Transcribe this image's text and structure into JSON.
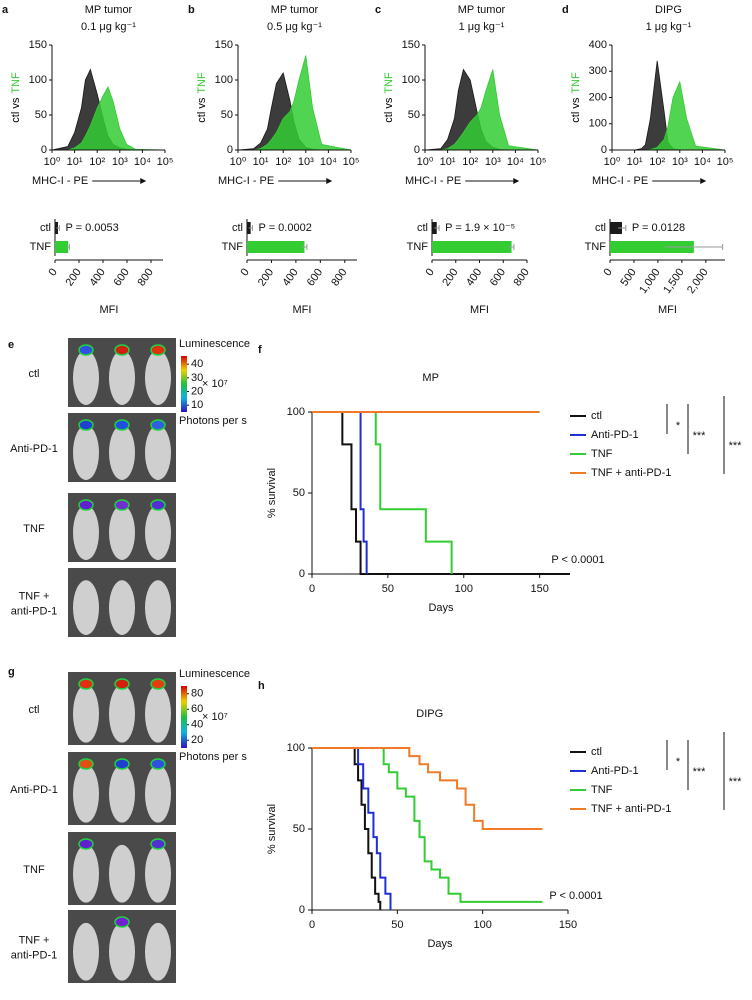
{
  "chart_data": [
    {
      "type": "area",
      "panel": "a",
      "title": "MP tumor",
      "subtitle": "0.1 μg kg⁻¹",
      "ylabel_parts": [
        {
          "text": "ctl vs",
          "color": "#000000"
        },
        {
          "text": "TNF",
          "color": "#33cc33"
        }
      ],
      "xlabel": "MHC-I - PE",
      "xscale": "log",
      "x": [
        1,
        5,
        10,
        20,
        30,
        50,
        100,
        200,
        300,
        500,
        1000,
        2000,
        5000,
        100000
      ],
      "series": [
        {
          "color": "#1a1a1a",
          "values": [
            0,
            5,
            25,
            60,
            100,
            115,
            80,
            40,
            20,
            8,
            3,
            1,
            0,
            0
          ]
        },
        {
          "color": "#33cc33",
          "values": [
            0,
            0,
            3,
            10,
            20,
            35,
            60,
            80,
            90,
            70,
            30,
            8,
            1,
            0
          ]
        }
      ],
      "xlim": [
        1,
        100000
      ],
      "xticks": [
        {
          "value": 1,
          "label": "10⁰"
        },
        {
          "value": 10,
          "label": "10¹"
        },
        {
          "value": 100,
          "label": "10²"
        },
        {
          "value": 1000,
          "label": "10³"
        },
        {
          "value": 10000,
          "label": "10⁴"
        },
        {
          "value": 100000,
          "label": "10⁵"
        }
      ],
      "ylim": [
        0,
        150
      ],
      "yticks": [
        0,
        50,
        100,
        150
      ]
    },
    {
      "type": "area",
      "panel": "b",
      "title": "MP tumor",
      "subtitle": "0.5 μg kg⁻¹",
      "ylabel_parts": [
        {
          "text": "ctl vs",
          "color": "#000000"
        },
        {
          "text": "TNF",
          "color": "#33cc33"
        }
      ],
      "xlabel": "MHC-I - PE",
      "xscale": "log",
      "x": [
        1,
        5,
        10,
        20,
        30,
        50,
        100,
        200,
        300,
        500,
        1000,
        2000,
        5000,
        100000
      ],
      "series": [
        {
          "color": "#1a1a1a",
          "values": [
            0,
            2,
            10,
            30,
            60,
            95,
            110,
            70,
            40,
            15,
            4,
            1,
            0,
            0
          ]
        },
        {
          "color": "#33cc33",
          "values": [
            0,
            0,
            2,
            8,
            15,
            25,
            45,
            55,
            70,
            100,
            135,
            60,
            8,
            0
          ]
        }
      ],
      "xlim": [
        1,
        100000
      ],
      "xticks": [
        {
          "value": 1,
          "label": "10⁰"
        },
        {
          "value": 10,
          "label": "10¹"
        },
        {
          "value": 100,
          "label": "10²"
        },
        {
          "value": 1000,
          "label": "10³"
        },
        {
          "value": 10000,
          "label": "10⁴"
        },
        {
          "value": 100000,
          "label": "10⁵"
        }
      ],
      "ylim": [
        0,
        150
      ],
      "yticks": [
        0,
        50,
        100,
        150
      ]
    },
    {
      "type": "area",
      "panel": "c",
      "title": "MP tumor",
      "subtitle": "1 μg kg⁻¹",
      "ylabel_parts": [
        {
          "text": "ctl vs",
          "color": "#000000"
        },
        {
          "text": "TNF",
          "color": "#33cc33"
        }
      ],
      "xlabel": "MHC-I - PE",
      "xscale": "log",
      "x": [
        1,
        5,
        10,
        20,
        30,
        50,
        100,
        200,
        300,
        500,
        1000,
        2000,
        5000,
        100000
      ],
      "series": [
        {
          "color": "#1a1a1a",
          "values": [
            0,
            2,
            15,
            45,
            85,
            115,
            100,
            55,
            30,
            12,
            4,
            1,
            0,
            0
          ]
        },
        {
          "color": "#33cc33",
          "values": [
            0,
            0,
            2,
            8,
            15,
            25,
            40,
            50,
            60,
            85,
            115,
            50,
            6,
            0
          ]
        }
      ],
      "xlim": [
        1,
        100000
      ],
      "xticks": [
        {
          "value": 1,
          "label": "10⁰"
        },
        {
          "value": 10,
          "label": "10¹"
        },
        {
          "value": 100,
          "label": "10²"
        },
        {
          "value": 1000,
          "label": "10³"
        },
        {
          "value": 10000,
          "label": "10⁴"
        },
        {
          "value": 100000,
          "label": "10⁵"
        }
      ],
      "ylim": [
        0,
        150
      ],
      "yticks": [
        0,
        50,
        100,
        150
      ]
    },
    {
      "type": "area",
      "panel": "d",
      "title": "DIPG",
      "subtitle": "1 μg kg⁻¹",
      "ylabel_parts": [
        {
          "text": "ctl vs",
          "color": "#000000"
        },
        {
          "text": "TNF",
          "color": "#33cc33"
        }
      ],
      "xlabel": "MHC-I - PE",
      "xscale": "log",
      "x": [
        1,
        5,
        10,
        20,
        30,
        50,
        100,
        200,
        300,
        500,
        1000,
        2000,
        5000,
        100000
      ],
      "series": [
        {
          "color": "#1a1a1a",
          "values": [
            0,
            0,
            0,
            5,
            20,
            120,
            340,
            150,
            30,
            5,
            0,
            0,
            0,
            0
          ]
        },
        {
          "color": "#33cc33",
          "values": [
            0,
            0,
            0,
            0,
            0,
            2,
            10,
            40,
            90,
            200,
            260,
            120,
            15,
            0
          ]
        }
      ],
      "xlim": [
        1,
        100000
      ],
      "xticks": [
        {
          "value": 1,
          "label": "10⁰"
        },
        {
          "value": 10,
          "label": "10¹"
        },
        {
          "value": 100,
          "label": "10²"
        },
        {
          "value": 1000,
          "label": "10³"
        },
        {
          "value": 10000,
          "label": "10⁴"
        },
        {
          "value": 100000,
          "label": "10⁵"
        }
      ],
      "ylim": [
        0,
        400
      ],
      "yticks": [
        0,
        100,
        200,
        300,
        400
      ]
    },
    {
      "type": "barh",
      "categories": [
        "ctl",
        "TNF"
      ],
      "values": [
        25,
        110
      ],
      "errors": [
        12,
        10
      ],
      "colors": [
        "#1a1a1a",
        "#33cc33"
      ],
      "xlabel": "MFI",
      "annotation": "P = 0.0053",
      "xlim": [
        0,
        900
      ],
      "xticks": [
        0,
        200,
        400,
        600,
        800
      ]
    },
    {
      "type": "barh",
      "categories": [
        "ctl",
        "TNF"
      ],
      "values": [
        30,
        470
      ],
      "errors": [
        15,
        20
      ],
      "colors": [
        "#1a1a1a",
        "#33cc33"
      ],
      "xlabel": "MFI",
      "annotation": "P = 0.0002",
      "xlim": [
        0,
        900
      ],
      "xticks": [
        0,
        200,
        400,
        600,
        800
      ]
    },
    {
      "type": "barh",
      "categories": [
        "ctl",
        "TNF"
      ],
      "values": [
        40,
        670
      ],
      "errors": [
        20,
        20
      ],
      "colors": [
        "#1a1a1a",
        "#33cc33"
      ],
      "xlabel": "MFI",
      "annotation": "P = 1.9 × 10⁻⁵",
      "xlim": [
        0,
        800
      ],
      "xticks": [
        0,
        200,
        400,
        600,
        800
      ]
    },
    {
      "type": "barh",
      "categories": [
        "ctl",
        "TNF"
      ],
      "values": [
        250,
        1750
      ],
      "errors": [
        80,
        600
      ],
      "colors": [
        "#1a1a1a",
        "#33cc33"
      ],
      "xlabel": "MFI",
      "annotation": "P = 0.0128",
      "xlim": [
        0,
        2400
      ],
      "xticks": [
        0,
        500,
        {
          "value": 1000,
          "label": "1,000"
        },
        {
          "value": 1500,
          "label": "1,500"
        },
        {
          "value": 2000,
          "label": "2,000"
        }
      ]
    },
    {
      "type": "step",
      "panel": "f",
      "title": "MP",
      "xlabel": "Days",
      "ylabel": "% survival",
      "xlim": [
        0,
        170
      ],
      "xticks": [
        0,
        50,
        100,
        150
      ],
      "ylim": [
        0,
        100
      ],
      "yticks": [
        0,
        50,
        100
      ],
      "series": [
        {
          "name": "ctl",
          "color": "#111111",
          "x": [
            0,
            20,
            26,
            29,
            32,
            170
          ],
          "values": [
            100,
            80,
            40,
            20,
            0,
            0
          ]
        },
        {
          "name": "Anti-PD-1",
          "color": "#1f2fd6",
          "x": [
            0,
            32,
            34,
            36
          ],
          "values": [
            100,
            40,
            20,
            0
          ]
        },
        {
          "name": "TNF",
          "color": "#33cc33",
          "x": [
            0,
            42,
            45,
            75,
            92
          ],
          "values": [
            100,
            80,
            40,
            20,
            0
          ]
        },
        {
          "name": "TNF + anti-PD-1",
          "color": "#f07a28",
          "x": [
            0,
            150
          ],
          "values": [
            100,
            100
          ]
        }
      ],
      "significance": [
        "*",
        "***",
        "***"
      ],
      "annotation": "P < 0.0001"
    },
    {
      "type": "step",
      "panel": "h",
      "title": "DIPG",
      "xlabel": "Days",
      "ylabel": "% survival",
      "xlim": [
        0,
        150
      ],
      "xticks": [
        0,
        50,
        100,
        150
      ],
      "ylim": [
        0,
        100
      ],
      "yticks": [
        0,
        50,
        100
      ],
      "series": [
        {
          "name": "ctl",
          "color": "#111111",
          "x": [
            0,
            25,
            27,
            29,
            31,
            33,
            35,
            37,
            39,
            40
          ],
          "values": [
            100,
            90,
            80,
            65,
            50,
            35,
            20,
            10,
            5,
            0
          ]
        },
        {
          "name": "Anti-PD-1",
          "color": "#1f2fd6",
          "x": [
            0,
            27,
            30,
            33,
            36,
            38,
            40,
            43,
            46
          ],
          "values": [
            100,
            90,
            75,
            60,
            45,
            35,
            20,
            10,
            0
          ]
        },
        {
          "name": "TNF",
          "color": "#33cc33",
          "x": [
            0,
            42,
            45,
            50,
            55,
            60,
            63,
            66,
            70,
            75,
            80,
            87,
            135
          ],
          "values": [
            100,
            90,
            85,
            75,
            70,
            55,
            45,
            30,
            25,
            20,
            10,
            5,
            5
          ]
        },
        {
          "name": "TNF + anti-PD-1",
          "color": "#f07a28",
          "x": [
            0,
            57,
            63,
            68,
            75,
            85,
            90,
            95,
            100,
            135
          ],
          "values": [
            100,
            95,
            90,
            85,
            80,
            75,
            65,
            55,
            50,
            50
          ]
        }
      ],
      "significance": [
        "*",
        "***",
        "***"
      ],
      "annotation": "P < 0.0001"
    }
  ],
  "images": [
    {
      "panel": "e",
      "rows": [
        [
          "ctl"
        ],
        [
          "Anti-PD-1"
        ],
        [
          "TNF"
        ],
        [
          "TNF +",
          "anti-PD-1"
        ]
      ],
      "colorbar": {
        "title": "Luminescence",
        "lim": [
          5,
          46
        ],
        "ticks": [
          10,
          20,
          30,
          40
        ],
        "multiplier": "× 10⁷",
        "unit": "Photons per s"
      }
    },
    {
      "panel": "g",
      "rows": [
        [
          "ctl"
        ],
        [
          "Anti-PD-1"
        ],
        [
          "TNF"
        ],
        [
          "TNF +",
          "anti-PD-1"
        ]
      ],
      "colorbar": {
        "title": "Luminescence",
        "lim": [
          10,
          90
        ],
        "ticks": [
          20,
          40,
          60,
          80
        ],
        "multiplier": "× 10⁷",
        "unit": "Photons per s"
      }
    }
  ]
}
